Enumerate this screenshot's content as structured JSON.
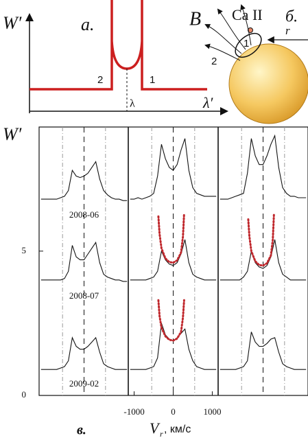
{
  "panel_a": {
    "ylabel": "W′",
    "label": "а.",
    "xlabel": "λ′",
    "left_mark": "2",
    "right_mark": "1",
    "center_mark": "λ"
  },
  "panel_b": {
    "field": "B",
    "ion": "Ca II",
    "label": "б.",
    "radius": "r",
    "mark_1": "1",
    "mark_2": "2"
  },
  "chart_data": {
    "type": "line",
    "ylabel": "W′",
    "xlabel": "V",
    "xlabel_sub": "r",
    "xlabel_unit": ", км/с",
    "panel_label": "в.",
    "xlim": [
      -1150,
      1150
    ],
    "xticks": [
      -1000,
      0,
      1000
    ],
    "ylim": [
      0,
      9.3
    ],
    "yticks": [
      0,
      5
    ],
    "vlines": [
      -550,
      0,
      550
    ],
    "color": "#111111",
    "model_color": "#c0282d",
    "x": [
      -1100,
      -1000,
      -900,
      -800,
      -700,
      -600,
      -500,
      -400,
      -300,
      -200,
      -100,
      0,
      100,
      200,
      300,
      400,
      500,
      600,
      700,
      800,
      900,
      1000,
      1100
    ],
    "model_x": [
      -380,
      -350,
      -300,
      -200,
      -100,
      0,
      100,
      200,
      250,
      280
    ],
    "rows": [
      {
        "label": "2008-06",
        "spectra": [
          [
            6.8,
            6.8,
            6.8,
            6.8,
            6.8,
            6.85,
            6.9,
            7.1,
            7.8,
            7.6,
            7.55,
            7.6,
            7.7,
            7.9,
            8.1,
            7.5,
            7.1,
            6.95,
            6.85,
            6.8,
            6.8,
            6.75,
            6.75
          ],
          [
            6.8,
            6.8,
            6.85,
            6.8,
            6.85,
            6.9,
            7.0,
            7.6,
            8.7,
            8.2,
            7.9,
            7.8,
            8.0,
            8.5,
            8.9,
            7.8,
            7.2,
            7.0,
            6.95,
            6.9,
            6.9,
            6.9,
            6.9
          ],
          [
            6.8,
            6.8,
            6.8,
            6.85,
            6.9,
            6.95,
            7.0,
            7.7,
            8.9,
            8.3,
            8.0,
            8.0,
            8.3,
            8.7,
            9.0,
            7.9,
            7.2,
            7.0,
            6.9,
            6.9,
            6.85,
            6.85,
            6.85
          ]
        ],
        "model": [
          null,
          null,
          null
        ]
      },
      {
        "label": "2008-07",
        "spectra": [
          [
            4.0,
            4.0,
            4.0,
            4.0,
            4.0,
            4.0,
            4.05,
            4.3,
            5.2,
            4.8,
            4.7,
            4.7,
            4.9,
            5.1,
            5.3,
            4.6,
            4.2,
            4.1,
            4.05,
            4.0,
            4.0,
            3.95,
            3.95
          ],
          [
            4.0,
            4.0,
            4.0,
            4.0,
            4.0,
            4.05,
            4.1,
            4.3,
            5.0,
            4.7,
            4.55,
            4.5,
            4.6,
            4.9,
            5.4,
            4.6,
            4.2,
            4.1,
            4.05,
            4.0,
            4.0,
            4.0,
            4.0
          ],
          [
            4.0,
            4.0,
            4.0,
            4.0,
            4.0,
            4.0,
            4.1,
            4.3,
            5.0,
            4.6,
            4.45,
            4.4,
            4.5,
            4.8,
            5.4,
            4.6,
            4.2,
            4.1,
            4.0,
            4.0,
            4.0,
            4.0,
            4.0
          ]
        ],
        "model": [
          null,
          [
            6.2,
            5.6,
            5.1,
            4.75,
            4.62,
            4.6,
            4.68,
            4.95,
            5.5,
            6.3
          ],
          [
            6.1,
            5.5,
            5.0,
            4.65,
            4.52,
            4.5,
            4.58,
            4.85,
            5.4,
            6.3
          ]
        ]
      },
      {
        "label": "2009-02",
        "spectra": [
          [
            0.9,
            0.9,
            0.9,
            0.9,
            0.9,
            0.95,
            1.0,
            1.2,
            2.0,
            1.7,
            1.6,
            1.6,
            1.7,
            1.85,
            2.0,
            1.5,
            1.1,
            1.0,
            0.95,
            0.9,
            0.9,
            0.9,
            0.9
          ],
          [
            0.9,
            0.9,
            0.9,
            0.9,
            0.9,
            0.95,
            1.0,
            1.3,
            2.5,
            2.1,
            1.95,
            1.9,
            2.0,
            2.15,
            2.3,
            1.6,
            1.2,
            1.0,
            0.95,
            0.9,
            0.9,
            0.9,
            0.9
          ],
          [
            0.9,
            0.9,
            0.9,
            0.9,
            0.9,
            0.95,
            1.0,
            1.2,
            2.2,
            1.85,
            1.7,
            1.7,
            1.8,
            1.95,
            2.0,
            1.5,
            1.1,
            1.0,
            0.95,
            0.9,
            0.9,
            0.9,
            0.9
          ]
        ],
        "model": [
          null,
          [
            3.3,
            2.75,
            2.35,
            2.05,
            1.93,
            1.9,
            1.97,
            2.2,
            2.7,
            3.3
          ],
          null
        ]
      }
    ]
  }
}
